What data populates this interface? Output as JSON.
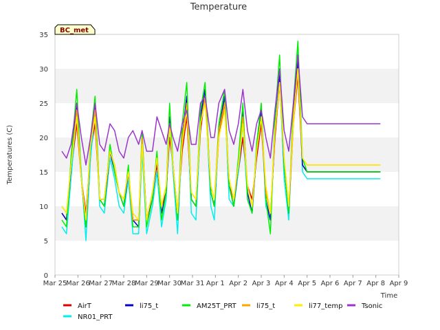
{
  "chart_data": {
    "type": "line",
    "title": "Temperature",
    "xlabel": "Time",
    "ylabel": "Temperatures (C)",
    "badge": "BC_met",
    "xlim": [
      0,
      15
    ],
    "ylim": [
      0,
      35
    ],
    "x_ticks": [
      "Mar 25",
      "Mar 26",
      "Mar 27",
      "Mar 28",
      "Mar 29",
      "Mar 30",
      "Mar 31",
      "Apr 1",
      "Apr 2",
      "Apr 3",
      "Apr 4",
      "Apr 5",
      "Apr 6",
      "Apr 7",
      "Apr 8",
      "Apr 9"
    ],
    "y_ticks": [
      0,
      5,
      10,
      15,
      20,
      25,
      30,
      35
    ],
    "grid_bands": true,
    "legend_position": "bottom",
    "x": [
      0.3,
      0.5,
      0.7,
      0.95,
      1.15,
      1.35,
      1.55,
      1.75,
      1.95,
      2.15,
      2.4,
      2.6,
      2.8,
      3.0,
      3.2,
      3.4,
      3.65,
      3.8,
      4.0,
      4.25,
      4.45,
      4.65,
      4.85,
      5.0,
      5.15,
      5.35,
      5.55,
      5.75,
      5.95,
      6.15,
      6.35,
      6.55,
      6.8,
      6.95,
      7.15,
      7.4,
      7.6,
      7.8,
      8.0,
      8.2,
      8.4,
      8.6,
      8.8,
      9.0,
      9.2,
      9.4,
      9.6,
      9.8,
      10.0,
      10.2,
      10.4,
      10.6,
      10.8,
      11.0,
      11.2,
      11.4,
      11.6,
      11.8,
      12.0,
      12.2,
      12.4,
      12.6,
      12.8,
      13.0,
      13.2,
      13.4,
      13.6,
      13.8,
      14.0,
      14.2
    ],
    "series": [
      {
        "name": "AirT",
        "color": "#dd0000",
        "values": [
          9,
          8,
          15,
          22,
          14,
          9,
          18,
          22,
          11,
          11,
          18,
          16,
          12,
          11,
          15,
          8,
          8,
          18,
          8,
          12,
          16,
          10,
          12,
          20,
          16,
          9,
          18,
          23,
          11,
          10,
          21,
          26,
          12,
          10,
          20,
          25,
          13,
          11,
          15,
          20,
          13,
          11,
          17,
          22,
          12,
          9,
          20,
          28,
          16,
          9,
          22,
          29,
          16,
          15,
          15,
          15,
          15,
          15,
          15,
          15,
          15,
          15,
          15,
          15,
          15,
          15,
          15,
          15,
          15,
          15
        ]
      },
      {
        "name": "NR01_PRT",
        "color": "#00eeee",
        "values": [
          7,
          6,
          14,
          24,
          15,
          5,
          17,
          24,
          10,
          9,
          17,
          14,
          10,
          9,
          14,
          6,
          6,
          18,
          6,
          10,
          15,
          7,
          11,
          22,
          15,
          6,
          20,
          26,
          9,
          8,
          22,
          27,
          10,
          8,
          21,
          26,
          11,
          10,
          15,
          22,
          11,
          9,
          18,
          24,
          10,
          8,
          22,
          29,
          14,
          8,
          24,
          33,
          15,
          14,
          14,
          14,
          14,
          14,
          14,
          14,
          14,
          14,
          14,
          14,
          14,
          14,
          14,
          14,
          14,
          14
        ]
      },
      {
        "name": "li75_t",
        "color": "#0000cc",
        "values": [
          9,
          8,
          16,
          25,
          14,
          7,
          19,
          25,
          11,
          10,
          18,
          15,
          12,
          10,
          15,
          8,
          7,
          20,
          8,
          11,
          17,
          9,
          12,
          23,
          16,
          8,
          20,
          26,
          11,
          10,
          23,
          27,
          12,
          10,
          21,
          26,
          13,
          10,
          16,
          24,
          12,
          9,
          18,
          24,
          11,
          8,
          21,
          29,
          16,
          9,
          23,
          31,
          16,
          15,
          15,
          15,
          15,
          15,
          15,
          15,
          15,
          15,
          15,
          15,
          15,
          15,
          15,
          15,
          15,
          15
        ]
      },
      {
        "name": "AM25T_PRT",
        "color": "#00ee00",
        "values": [
          8,
          7,
          17,
          27,
          14,
          7,
          20,
          26,
          11,
          10,
          19,
          15,
          12,
          10,
          16,
          7,
          7,
          21,
          7,
          11,
          18,
          8,
          12,
          25,
          16,
          8,
          22,
          28,
          11,
          10,
          24,
          28,
          12,
          10,
          22,
          27,
          13,
          10,
          17,
          25,
          11,
          9,
          19,
          25,
          11,
          6,
          23,
          32,
          16,
          9,
          25,
          34,
          17,
          15,
          15,
          15,
          15,
          15,
          15,
          15,
          15,
          15,
          15,
          15,
          15,
          15,
          15,
          15,
          15,
          15
        ]
      },
      {
        "name": "li75_t",
        "color": "#ffa500",
        "values": [
          10,
          9,
          16,
          24,
          14,
          8,
          19,
          24,
          11,
          11,
          18,
          16,
          12,
          11,
          15,
          8,
          8,
          20,
          8,
          12,
          17,
          10,
          13,
          22,
          16,
          9,
          20,
          25,
          12,
          11,
          22,
          26,
          13,
          11,
          21,
          25,
          14,
          11,
          16,
          23,
          13,
          10,
          18,
          23,
          12,
          9,
          21,
          28,
          17,
          10,
          23,
          30,
          17,
          16,
          16,
          16,
          16,
          16,
          16,
          16,
          16,
          16,
          16,
          16,
          16,
          16,
          16,
          16,
          16,
          16
        ]
      },
      {
        "name": "li77_temp",
        "color": "#ffee00",
        "values": [
          10,
          9,
          16,
          23,
          14,
          8,
          19,
          23,
          11,
          11,
          18,
          16,
          12,
          11,
          15,
          9,
          8,
          19,
          8,
          12,
          17,
          10,
          13,
          22,
          16,
          9,
          19,
          24,
          12,
          11,
          22,
          25,
          13,
          11,
          20,
          24,
          14,
          11,
          16,
          22,
          13,
          10,
          18,
          23,
          13,
          9,
          21,
          28,
          17,
          10,
          22,
          30,
          17,
          16,
          16,
          16,
          16,
          16,
          16,
          16,
          16,
          16,
          16,
          16,
          16,
          16,
          16,
          16,
          16,
          16
        ]
      },
      {
        "name": "Tsonic",
        "color": "#9933cc",
        "values": [
          18,
          17,
          19,
          25,
          20,
          16,
          20,
          25,
          19,
          18,
          22,
          21,
          18,
          17,
          20,
          21,
          19,
          21,
          18,
          18,
          23,
          21,
          19,
          22,
          20,
          18,
          22,
          24,
          19,
          19,
          25,
          26,
          20,
          20,
          25,
          27,
          21,
          19,
          22,
          27,
          21,
          18,
          22,
          24,
          20,
          17,
          24,
          30,
          21,
          18,
          25,
          32,
          23,
          22,
          22,
          22,
          22,
          22,
          22,
          22,
          22,
          22,
          22,
          22,
          22,
          22,
          22,
          22,
          22,
          22
        ]
      }
    ]
  }
}
